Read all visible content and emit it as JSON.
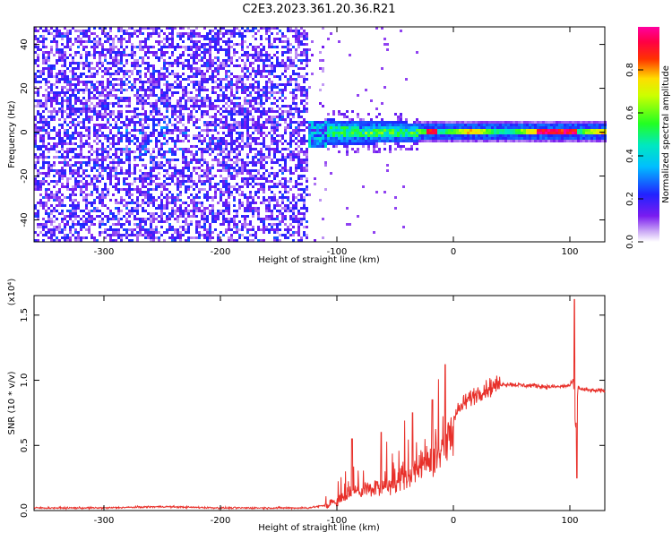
{
  "page": {
    "title": "C2E3.2023.361.20.36.R21"
  },
  "colors": {
    "snr_line": "#e8302a",
    "background": "#ffffff",
    "axis": "#000000"
  },
  "chart_data": [
    {
      "type": "heatmap",
      "name": "spectrogram",
      "xlabel": "Height of straight line (km)",
      "ylabel": "Frequency (Hz)",
      "xlim": [
        -360,
        130
      ],
      "ylim": [
        -50,
        48
      ],
      "xticks": [
        -300,
        -200,
        -100,
        0,
        100
      ],
      "yticks": [
        -40,
        -20,
        0,
        20,
        40
      ],
      "colorbar": {
        "label": "Normalized spectral amplitude",
        "range": [
          0.0,
          1.0
        ],
        "ticks": [
          0.0,
          0.2,
          0.4,
          0.6,
          0.8
        ],
        "tick_labels": [
          "0.0",
          "0.2",
          "0.4",
          "0.6",
          "0.8"
        ],
        "colormap": "hsv-rainbow (white→violet→blue→cyan→green→yellow→red→magenta)"
      },
      "regions": [
        {
          "x_range": [
            -360,
            -125
          ],
          "freq_range": [
            -50,
            48
          ],
          "amplitude": "0.0-0.25",
          "description": "broadband noise"
        },
        {
          "x_range": [
            -130,
            -30
          ],
          "freq_center": 0,
          "freq_halfwidth": 5,
          "amplitude": "0.2-0.6"
        },
        {
          "x_range": [
            -30,
            130
          ],
          "freq_center": 1,
          "freq_halfwidth": 2,
          "amplitude": "0.5-1.0",
          "peak_x": 90
        }
      ]
    },
    {
      "type": "line",
      "name": "snr",
      "xlabel": "Height of straight line (km)",
      "ylabel": "SNR (10 * v/v)",
      "scale_note": "(x10⁴)",
      "xlim": [
        -360,
        130
      ],
      "ylim": [
        0,
        1.65
      ],
      "xticks": [
        -300,
        -200,
        -100,
        0,
        100
      ],
      "yticks": [
        0.0,
        0.5,
        1.0,
        1.5
      ],
      "ytick_labels": [
        "0.0",
        "0.5",
        "1.0",
        "1.5"
      ],
      "series": [
        {
          "x": [
            -360,
            -300,
            -250,
            -200,
            -150,
            -125,
            -110,
            -100,
            -90,
            -80,
            -70,
            -60,
            -50,
            -40,
            -30,
            -20,
            -10,
            0,
            10,
            20,
            30,
            40,
            50,
            60,
            70,
            80,
            90,
            100,
            103,
            105,
            107,
            110,
            120,
            130
          ],
          "y": [
            0.02,
            0.02,
            0.03,
            0.02,
            0.02,
            0.02,
            0.04,
            0.08,
            0.14,
            0.18,
            0.2,
            0.22,
            0.26,
            0.3,
            0.4,
            0.45,
            0.58,
            0.72,
            0.83,
            0.9,
            0.94,
            0.97,
            0.97,
            0.96,
            0.96,
            0.95,
            0.95,
            0.96,
            1.0,
            0.6,
            0.95,
            0.93,
            0.92,
            0.92
          ],
          "spikes": [
            {
              "x": -87,
              "y": 0.55
            },
            {
              "x": -62,
              "y": 0.6
            },
            {
              "x": -35,
              "y": 0.75
            },
            {
              "x": -18,
              "y": 0.85
            },
            {
              "x": -7,
              "y": 1.12
            },
            {
              "x": 104,
              "y": 1.62
            },
            {
              "x": 106,
              "y": 0.25
            }
          ]
        }
      ]
    }
  ]
}
